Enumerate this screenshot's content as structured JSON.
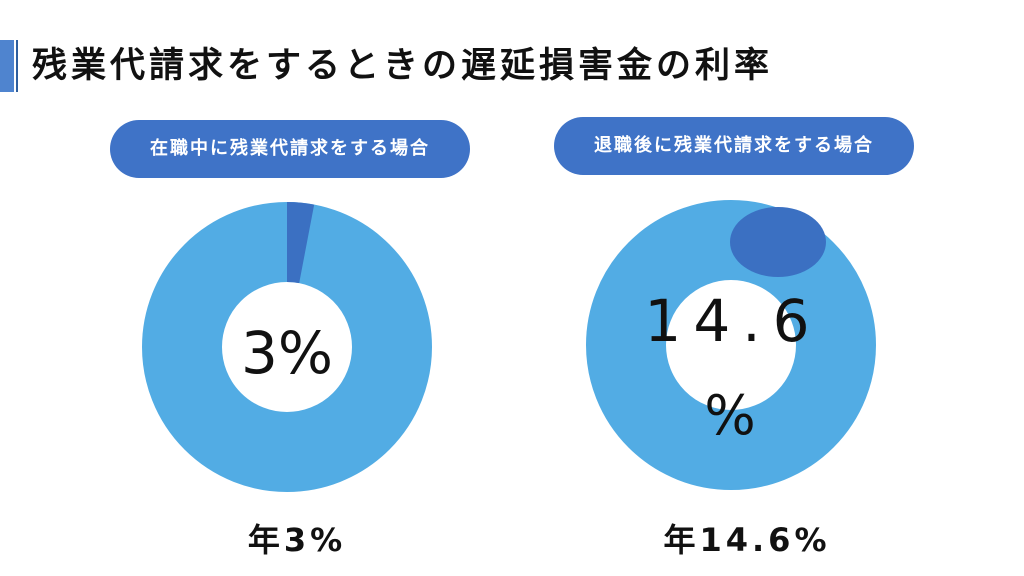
{
  "header": {
    "title": "残業代請求をするときの遅延損害金の利率"
  },
  "labels": {
    "left_heading": "在職中に残業代請求をする場合",
    "right_heading": "退職後に残業代請求をする場合",
    "left_center": "3%",
    "right_center_number": "14.6",
    "right_center_percent": "%",
    "left_bottom": "年3%",
    "right_bottom": "年14.6%"
  },
  "colors": {
    "accent": "#3f73c7",
    "ring": "#52ace4",
    "highlight": "#3b70c2"
  },
  "chart_data": [
    {
      "type": "pie",
      "title": "在職中に残業代請求をする場合",
      "categories": [
        "",
        ""
      ],
      "values": [
        3,
        97
      ],
      "center_label": "3%",
      "footer_label": "年3%"
    },
    {
      "type": "pie",
      "title": "退職後に残業代請求をする場合",
      "categories": [
        "",
        ""
      ],
      "values": [
        14.6,
        85.4
      ],
      "center_label": "14.6 %",
      "footer_label": "年14.6%"
    }
  ]
}
